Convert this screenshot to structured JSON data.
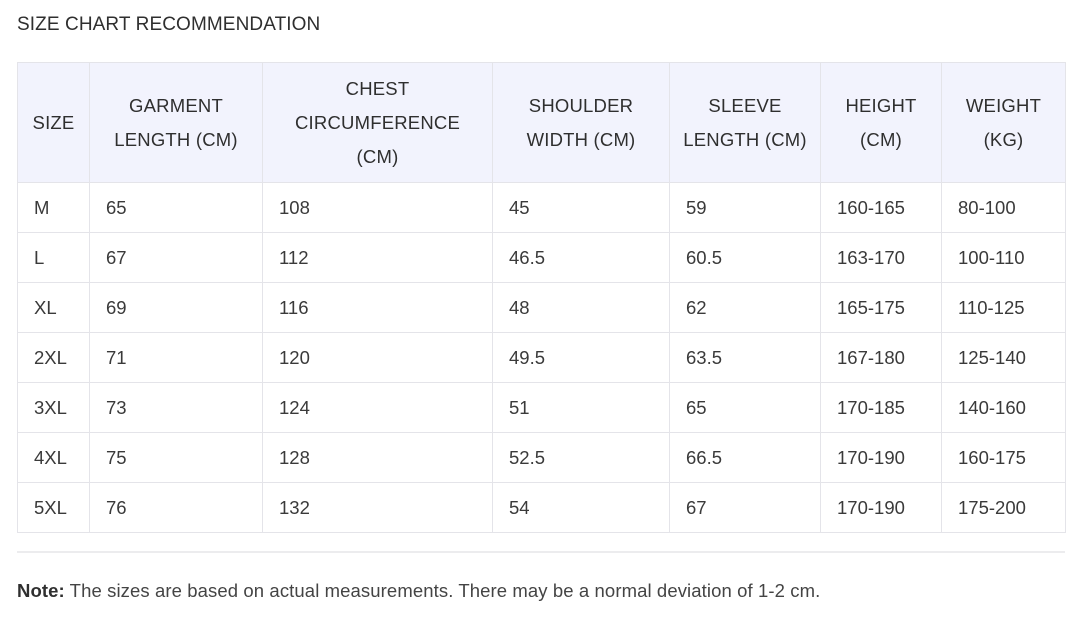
{
  "page": {
    "title": "SIZE CHART RECOMMENDATION"
  },
  "table": {
    "headers": [
      "SIZE",
      "GARMENT LENGTH (CM)",
      "CHEST CIRCUMFERENCE (CM)",
      "SHOULDER WIDTH (CM)",
      "SLEEVE LENGTH (CM)",
      "HEIGHT (CM)",
      "WEIGHT (KG)"
    ],
    "rows": [
      [
        "M",
        "65",
        "108",
        "45",
        "59",
        "160-165",
        "80-100"
      ],
      [
        "L",
        "67",
        "112",
        "46.5",
        "60.5",
        "163-170",
        "100-110"
      ],
      [
        "XL",
        "69",
        "116",
        "48",
        "62",
        "165-175",
        "110-125"
      ],
      [
        "2XL",
        "71",
        "120",
        "49.5",
        "63.5",
        "167-180",
        "125-140"
      ],
      [
        "3XL",
        "73",
        "124",
        "51",
        "65",
        "170-185",
        "140-160"
      ],
      [
        "4XL",
        "75",
        "128",
        "52.5",
        "66.5",
        "170-190",
        "160-175"
      ],
      [
        "5XL",
        "76",
        "132",
        "54",
        "67",
        "170-190",
        "175-200"
      ]
    ]
  },
  "note": {
    "label": "Note:",
    "text": " The sizes are based on actual measurements. There may be a normal deviation of 1-2 cm."
  },
  "colors": {
    "header_bg": "#f2f3fd",
    "border": "#e4e4e9",
    "text": "#333333"
  }
}
